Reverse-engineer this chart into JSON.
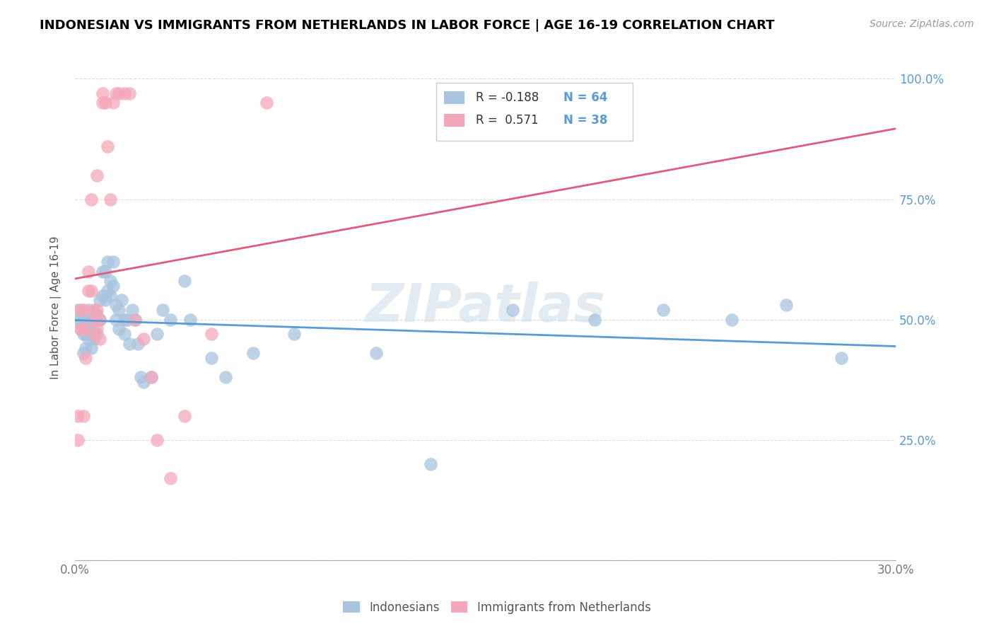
{
  "title": "INDONESIAN VS IMMIGRANTS FROM NETHERLANDS IN LABOR FORCE | AGE 16-19 CORRELATION CHART",
  "source": "Source: ZipAtlas.com",
  "ylabel": "In Labor Force | Age 16-19",
  "xlim": [
    0.0,
    0.3
  ],
  "ylim": [
    0.0,
    1.05
  ],
  "xtick_pos": [
    0.0,
    0.05,
    0.1,
    0.15,
    0.2,
    0.25,
    0.3
  ],
  "xticklabels": [
    "0.0%",
    "",
    "",
    "",
    "",
    "",
    "30.0%"
  ],
  "ytick_pos": [
    0.0,
    0.25,
    0.5,
    0.75,
    1.0
  ],
  "yticklabels": [
    "",
    "25.0%",
    "50.0%",
    "75.0%",
    "100.0%"
  ],
  "blue_R": "-0.188",
  "blue_N": "64",
  "pink_R": "0.571",
  "pink_N": "38",
  "blue_color": "#a8c4e0",
  "pink_color": "#f4a7b9",
  "blue_line_color": "#5b9bd5",
  "pink_line_color": "#e05c7a",
  "watermark": "ZIPatlas",
  "blue_scatter_x": [
    0.001,
    0.001,
    0.002,
    0.002,
    0.003,
    0.003,
    0.003,
    0.004,
    0.004,
    0.004,
    0.005,
    0.005,
    0.005,
    0.006,
    0.006,
    0.006,
    0.007,
    0.007,
    0.008,
    0.008,
    0.009,
    0.009,
    0.01,
    0.01,
    0.011,
    0.011,
    0.012,
    0.012,
    0.013,
    0.013,
    0.014,
    0.014,
    0.015,
    0.015,
    0.016,
    0.016,
    0.017,
    0.018,
    0.018,
    0.019,
    0.02,
    0.021,
    0.022,
    0.023,
    0.024,
    0.025,
    0.028,
    0.03,
    0.032,
    0.035,
    0.04,
    0.042,
    0.05,
    0.055,
    0.065,
    0.08,
    0.11,
    0.13,
    0.16,
    0.19,
    0.215,
    0.24,
    0.26,
    0.28
  ],
  "blue_scatter_y": [
    0.5,
    0.52,
    0.5,
    0.48,
    0.5,
    0.47,
    0.43,
    0.5,
    0.47,
    0.44,
    0.52,
    0.49,
    0.46,
    0.5,
    0.48,
    0.44,
    0.5,
    0.46,
    0.51,
    0.47,
    0.54,
    0.5,
    0.6,
    0.55,
    0.6,
    0.54,
    0.62,
    0.56,
    0.55,
    0.58,
    0.62,
    0.57,
    0.53,
    0.5,
    0.52,
    0.48,
    0.54,
    0.5,
    0.47,
    0.5,
    0.45,
    0.52,
    0.5,
    0.45,
    0.38,
    0.37,
    0.38,
    0.47,
    0.52,
    0.5,
    0.58,
    0.5,
    0.42,
    0.38,
    0.43,
    0.47,
    0.43,
    0.2,
    0.52,
    0.5,
    0.52,
    0.5,
    0.53,
    0.42
  ],
  "pink_scatter_x": [
    0.001,
    0.001,
    0.002,
    0.002,
    0.003,
    0.003,
    0.003,
    0.004,
    0.005,
    0.005,
    0.006,
    0.006,
    0.007,
    0.007,
    0.007,
    0.008,
    0.008,
    0.008,
    0.009,
    0.009,
    0.01,
    0.01,
    0.011,
    0.012,
    0.013,
    0.014,
    0.015,
    0.016,
    0.018,
    0.02,
    0.022,
    0.025,
    0.028,
    0.03,
    0.035,
    0.04,
    0.05,
    0.07
  ],
  "pink_scatter_y": [
    0.3,
    0.25,
    0.52,
    0.48,
    0.52,
    0.48,
    0.3,
    0.42,
    0.6,
    0.56,
    0.56,
    0.75,
    0.52,
    0.5,
    0.47,
    0.8,
    0.52,
    0.48,
    0.5,
    0.46,
    0.97,
    0.95,
    0.95,
    0.86,
    0.75,
    0.95,
    0.97,
    0.97,
    0.97,
    0.97,
    0.5,
    0.46,
    0.38,
    0.25,
    0.17,
    0.3,
    0.47,
    0.95
  ],
  "legend_label_blue": "Indonesians",
  "legend_label_pink": "Immigrants from Netherlands"
}
